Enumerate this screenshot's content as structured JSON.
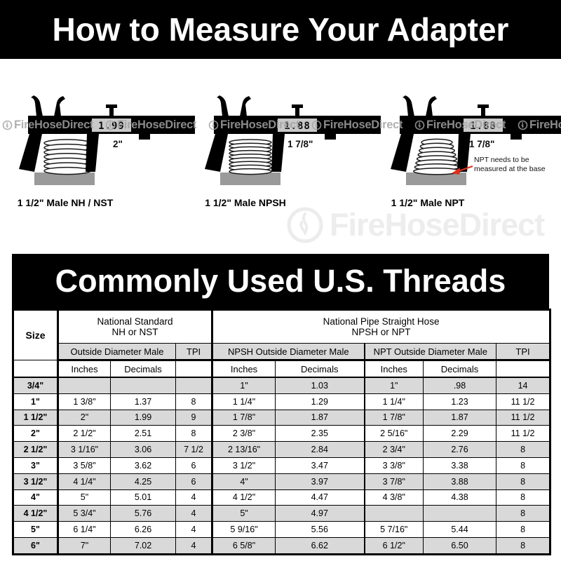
{
  "title_banner": "How to Measure Your Adapter",
  "table_banner": "Commonly Used U.S. Threads",
  "brand": "FireHoseDirect",
  "colors": {
    "accent_red": "#e0301e",
    "table_gray": "#d9d9d9",
    "banner_black": "#000000",
    "fitting_base_gray": "#9a9a9a",
    "lcd_gray": "#c9c9c9",
    "watermark_gray": "#a3a3a3",
    "watermark_light": "#ededed"
  },
  "calipers": [
    {
      "reading": "1.99",
      "dial_label": "2\"",
      "caption": "1 1/2\" Male NH / NST",
      "thread_type": "straight-coarse"
    },
    {
      "reading": "1.88",
      "dial_label": "1 7/8\"",
      "caption": "1 1/2\" Male NPSH",
      "thread_type": "straight-fine"
    },
    {
      "reading": "1.88",
      "dial_label": "1 7/8\"",
      "caption": "1 1/2\" Male NPT",
      "thread_type": "tapered",
      "note_lines": [
        "NPT needs to be",
        "measured at the base"
      ]
    }
  ],
  "table": {
    "size_header": "Size",
    "groups": [
      {
        "line1": "National Standard",
        "line2": "NH or NST"
      },
      {
        "line1": "National Pipe Straight Hose",
        "line2": "NPSH or NPT"
      }
    ],
    "subheaders": [
      "Outside Diameter Male",
      "TPI",
      "NPSH Outside Diameter Male",
      "NPT Outside Diameter Male",
      "TPI"
    ],
    "unit_row": [
      "",
      "Inches",
      "Decimals",
      "",
      "Inches",
      "Decimals",
      "Inches",
      "Decimals",
      ""
    ],
    "rows": [
      [
        "3/4\"",
        "",
        "",
        "",
        "1\"",
        "1.03",
        "1\"",
        ".98",
        "14"
      ],
      [
        "1\"",
        "1 3/8\"",
        "1.37",
        "8",
        "1 1/4\"",
        "1.29",
        "1 1/4\"",
        "1.23",
        "11 1/2"
      ],
      [
        "1 1/2\"",
        "2\"",
        "1.99",
        "9",
        "1 7/8\"",
        "1.87",
        "1 7/8\"",
        "1.87",
        "11 1/2"
      ],
      [
        "2\"",
        "2 1/2\"",
        "2.51",
        "8",
        "2 3/8\"",
        "2.35",
        "2 5/16\"",
        "2.29",
        "11 1/2"
      ],
      [
        "2 1/2\"",
        "3 1/16\"",
        "3.06",
        "7 1/2",
        "2 13/16\"",
        "2.84",
        "2 3/4\"",
        "2.76",
        "8"
      ],
      [
        "3\"",
        "3 5/8\"",
        "3.62",
        "6",
        "3 1/2\"",
        "3.47",
        "3 3/8\"",
        "3.38",
        "8"
      ],
      [
        "3 1/2\"",
        "4 1/4\"",
        "4.25",
        "6",
        "4\"",
        "3.97",
        "3 7/8\"",
        "3.88",
        "8"
      ],
      [
        "4\"",
        "5\"",
        "5.01",
        "4",
        "4 1/2\"",
        "4.47",
        "4 3/8\"",
        "4.38",
        "8"
      ],
      [
        "4 1/2\"",
        "5 3/4\"",
        "5.76",
        "4",
        "5\"",
        "4.97",
        "",
        "",
        "8"
      ],
      [
        "5\"",
        "6 1/4\"",
        "6.26",
        "4",
        "5 9/16\"",
        "5.56",
        "5 7/16\"",
        "5.44",
        "8"
      ],
      [
        "6\"",
        "7\"",
        "7.02",
        "4",
        "6 5/8\"",
        "6.62",
        "6 1/2\"",
        "6.50",
        "8"
      ]
    ]
  }
}
